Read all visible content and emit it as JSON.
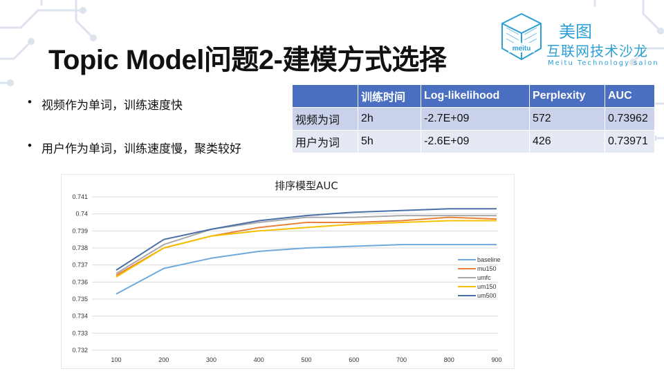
{
  "slide": {
    "title": "Topic Model问题2-建模方式选择",
    "logo": {
      "name": "美图",
      "subtitle": "互联网技术沙龙",
      "english": "Meitu Technology salon",
      "badge": "meitu"
    },
    "bullets": [
      "视频作为单词，训练速度快",
      "用户作为单词，训练速度慢，聚类较好"
    ],
    "bullet_symbol": "•"
  },
  "table": {
    "headers": [
      "",
      "训练时间",
      "Log-likelihood",
      "Perplexity",
      "AUC"
    ],
    "rows": [
      [
        "视频为词",
        "2h",
        "-2.7E+09",
        "572",
        "0.73962"
      ],
      [
        "用户为词",
        "5h",
        "-2.6E+09",
        "426",
        "0.73971"
      ]
    ]
  },
  "colors": {
    "header_bg": "#4a6fc1",
    "row_dark": "#c9d2ea",
    "row_light": "#e5e9f4",
    "logo_blue": "#2b9fd6"
  },
  "chart_data": {
    "type": "line",
    "title": "排序模型AUC",
    "xlabel": "",
    "ylabel": "",
    "x": [
      100,
      200,
      300,
      400,
      500,
      600,
      700,
      800,
      900
    ],
    "x_ticks": [
      "100",
      "200",
      "300",
      "400",
      "500",
      "600",
      "700",
      "800",
      "900"
    ],
    "y_ticks": [
      "0.732",
      "0.733",
      "0.734",
      "0.735",
      "0.736",
      "0.737",
      "0.738",
      "0.739",
      "0.74",
      "0.741"
    ],
    "ylim": [
      0.732,
      0.741
    ],
    "grid": true,
    "legend_position": "right",
    "series": [
      {
        "name": "baseline",
        "color": "#6fa8dc",
        "values": [
          0.7353,
          0.7368,
          0.7374,
          0.7378,
          0.738,
          0.7381,
          0.7382,
          0.7382,
          0.7382
        ]
      },
      {
        "name": "mu150",
        "color": "#e8823a",
        "values": [
          0.7364,
          0.738,
          0.7387,
          0.7392,
          0.7395,
          0.7395,
          0.7396,
          0.7398,
          0.7397
        ]
      },
      {
        "name": "umfc",
        "color": "#a9a9a9",
        "values": [
          0.7365,
          0.7382,
          0.7391,
          0.7395,
          0.7398,
          0.7398,
          0.7399,
          0.7399,
          0.7399
        ]
      },
      {
        "name": "um150",
        "color": "#f5c000",
        "values": [
          0.7363,
          0.738,
          0.7387,
          0.739,
          0.7392,
          0.7394,
          0.7395,
          0.7396,
          0.7396
        ]
      },
      {
        "name": "um500",
        "color": "#4a6fa8",
        "values": [
          0.7367,
          0.7385,
          0.7391,
          0.7396,
          0.7399,
          0.7401,
          0.7402,
          0.7403,
          0.7403
        ]
      }
    ]
  }
}
